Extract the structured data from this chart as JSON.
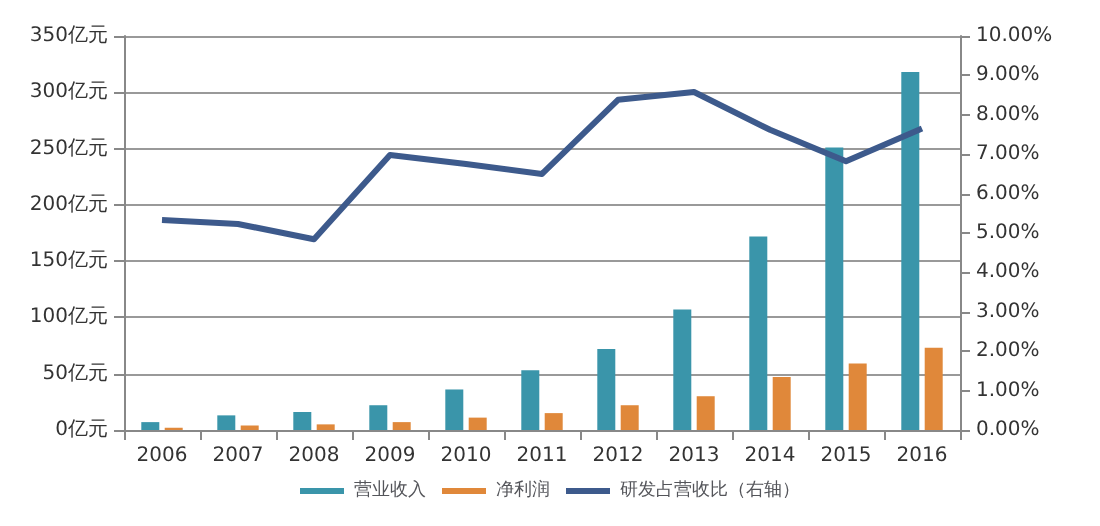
{
  "chart_data": {
    "type": "bar",
    "categories": [
      "2006",
      "2007",
      "2008",
      "2009",
      "2010",
      "2011",
      "2012",
      "2013",
      "2014",
      "2015",
      "2016"
    ],
    "series": [
      {
        "name": "营业收入",
        "color": "#3a95aa",
        "values": [
          7,
          13,
          16,
          22,
          36,
          53,
          72,
          107,
          172,
          251,
          318
        ]
      },
      {
        "name": "净利润",
        "color": "#e0883a",
        "values": [
          2,
          4,
          5,
          7,
          11,
          15,
          22,
          30,
          47,
          59,
          73
        ]
      },
      {
        "name": "研发占营收比（右轴）",
        "type": "line",
        "axis": "y2",
        "color": "#3d5a8c",
        "values": [
          5.33,
          5.23,
          4.84,
          6.98,
          6.75,
          6.5,
          8.38,
          8.58,
          7.62,
          6.82,
          7.65
        ]
      }
    ],
    "ylim": [
      0,
      350
    ],
    "yticks": [
      {
        "value": 0,
        "label": "0亿元"
      },
      {
        "value": 50,
        "label": "50亿元"
      },
      {
        "value": 100,
        "label": "100亿元"
      },
      {
        "value": 150,
        "label": "150亿元"
      },
      {
        "value": 200,
        "label": "200亿元"
      },
      {
        "value": 250,
        "label": "250亿元"
      },
      {
        "value": 300,
        "label": "300亿元"
      },
      {
        "value": 350,
        "label": "350亿元"
      }
    ],
    "y2lim": [
      0,
      10
    ],
    "y2ticks": [
      {
        "value": 0,
        "label": "0.00%"
      },
      {
        "value": 1,
        "label": "1.00%"
      },
      {
        "value": 2,
        "label": "2.00%"
      },
      {
        "value": 3,
        "label": "3.00%"
      },
      {
        "value": 4,
        "label": "4.00%"
      },
      {
        "value": 5,
        "label": "5.00%"
      },
      {
        "value": 6,
        "label": "6.00%"
      },
      {
        "value": 7,
        "label": "7.00%"
      },
      {
        "value": 8,
        "label": "8.00%"
      },
      {
        "value": 9,
        "label": "9.00%"
      },
      {
        "value": 10,
        "label": "10.00%"
      }
    ],
    "grid": "y",
    "legend": "bottom",
    "marker": "none",
    "line_style": "solid"
  }
}
